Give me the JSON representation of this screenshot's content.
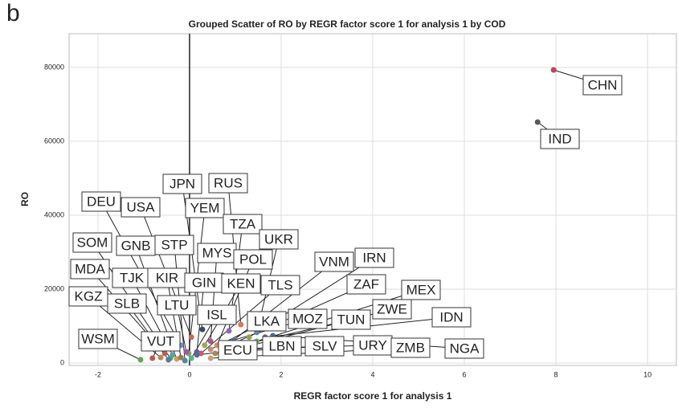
{
  "chart_data": {
    "type": "scatter",
    "panel_label": "b",
    "title": "Grouped Scatter of RO by REGR factor score   1 for analysis 1 by COD",
    "x_label": "REGR factor score   1 for analysis 1",
    "y_label": "RO",
    "xlim": [
      -2.63,
      10.63
    ],
    "ylim": [
      -650,
      89100
    ],
    "xticks": [
      -2,
      0,
      2,
      4,
      6,
      8,
      10
    ],
    "yticks": [
      0,
      20000,
      40000,
      60000,
      80000
    ],
    "reference_x": 0,
    "grid": true,
    "series": [
      {
        "name": "CHN",
        "color": "#b5475e",
        "x": [
          7.95
        ],
        "values": [
          79300
        ]
      },
      {
        "name": "IND",
        "color": "#5a5a5a",
        "x": [
          7.6
        ],
        "values": [
          65200
        ]
      },
      {
        "name": "DEU",
        "color": "#6a8fc0",
        "x": [
          -0.19
        ],
        "values": [
          4800
        ]
      },
      {
        "name": "USA",
        "color": "#c76a5a",
        "x": [
          0.04
        ],
        "values": [
          7000
        ]
      },
      {
        "name": "JPN",
        "color": "#3b4a6b",
        "x": [
          0.28
        ],
        "values": [
          9100
        ]
      },
      {
        "name": "RUS",
        "color": "#d07a5a",
        "x": [
          1.12
        ],
        "values": [
          10400
        ]
      },
      {
        "name": "YEM",
        "color": "#7aa35a",
        "x": [
          -0.02
        ],
        "values": [
          2600
        ]
      },
      {
        "name": "TZA",
        "color": "#8c6bb1",
        "x": [
          0.86
        ],
        "values": [
          8700
        ]
      },
      {
        "name": "UKR",
        "color": "#6c7fb5",
        "x": [
          1.47
        ],
        "values": [
          8300
        ]
      },
      {
        "name": "SOM",
        "color": "#5a9e6f",
        "x": [
          -0.42
        ],
        "values": [
          1300
        ]
      },
      {
        "name": "GNB",
        "color": "#c7a05a",
        "x": [
          -0.28
        ],
        "values": [
          1100
        ]
      },
      {
        "name": "STP",
        "color": "#4d8aa6",
        "x": [
          -0.1
        ],
        "values": [
          650
        ]
      },
      {
        "name": "MYS",
        "color": "#a35a8c",
        "x": [
          0.46
        ],
        "values": [
          5900
        ]
      },
      {
        "name": "POL",
        "color": "#d4896a",
        "x": [
          0.6
        ],
        "values": [
          4800
        ]
      },
      {
        "name": "VNM",
        "color": "#5a6fa3",
        "x": [
          0.95
        ],
        "values": [
          6100
        ]
      },
      {
        "name": "IRN",
        "color": "#8aa35a",
        "x": [
          1.3
        ],
        "values": [
          7000
        ]
      },
      {
        "name": "MDA",
        "color": "#b3625a",
        "x": [
          -0.54
        ],
        "values": [
          2600
        ]
      },
      {
        "name": "TJK",
        "color": "#5aa39a",
        "x": [
          -0.37
        ],
        "values": [
          2200
        ]
      },
      {
        "name": "KIR",
        "color": "#9a7a5a",
        "x": [
          -0.19
        ],
        "values": [
          1500
        ]
      },
      {
        "name": "GIN",
        "color": "#6a5aa3",
        "x": [
          0.16
        ],
        "values": [
          3000
        ]
      },
      {
        "name": "KEN",
        "color": "#a3a35a",
        "x": [
          0.33
        ],
        "values": [
          4800
        ]
      },
      {
        "name": "TLS",
        "color": "#c75a7a",
        "x": [
          0.25
        ],
        "values": [
          2600
        ]
      },
      {
        "name": "ZAF",
        "color": "#5a8ac7",
        "x": [
          0.77
        ],
        "values": [
          4300
        ]
      },
      {
        "name": "MEX",
        "color": "#7ab35a",
        "x": [
          1.47
        ],
        "values": [
          5900
        ]
      },
      {
        "name": "KGZ",
        "color": "#b38a5a",
        "x": [
          -0.63
        ],
        "values": [
          1500
        ]
      },
      {
        "name": "SLB",
        "color": "#5a7a9a",
        "x": [
          -0.46
        ],
        "values": [
          900
        ]
      },
      {
        "name": "LTU",
        "color": "#9a5aa3",
        "x": [
          -0.07
        ],
        "values": [
          3000
        ]
      },
      {
        "name": "ISL",
        "color": "#5ab38a",
        "x": [
          0.04
        ],
        "values": [
          1300
        ]
      },
      {
        "name": "LKA",
        "color": "#c78a7a",
        "x": [
          0.46
        ],
        "values": [
          3700
        ]
      },
      {
        "name": "MOZ",
        "color": "#7a8ac7",
        "x": [
          0.68
        ],
        "values": [
          5200
        ]
      },
      {
        "name": "TUN",
        "color": "#a36a5a",
        "x": [
          1.12
        ],
        "values": [
          4800
        ]
      },
      {
        "name": "ZWE",
        "color": "#5a9ab3",
        "x": [
          0.95
        ],
        "values": [
          3500
        ]
      },
      {
        "name": "IDN",
        "color": "#8a5a7a",
        "x": [
          1.65
        ],
        "values": [
          7000
        ]
      },
      {
        "name": "WSM",
        "color": "#6aa35a",
        "x": [
          -1.07
        ],
        "values": [
          900
        ]
      },
      {
        "name": "VUT",
        "color": "#b35a5a",
        "x": [
          -0.81
        ],
        "values": [
          1300
        ]
      },
      {
        "name": "ECU",
        "color": "#5a6a8a",
        "x": [
          0.16
        ],
        "values": [
          2200
        ]
      },
      {
        "name": "LBN",
        "color": "#a38a5a",
        "x": [
          0.56
        ],
        "values": [
          2600
        ]
      },
      {
        "name": "SLV",
        "color": "#7a5ab3",
        "x": [
          0.81
        ],
        "values": [
          3000
        ]
      },
      {
        "name": "URY",
        "color": "#5aa36a",
        "x": [
          1.09
        ],
        "values": [
          3900
        ]
      },
      {
        "name": "ZMB",
        "color": "#c7a07a",
        "x": [
          0.46
        ],
        "values": [
          1300
        ]
      },
      {
        "name": "NGA",
        "color": "#4a6a9a",
        "x": [
          1.82
        ],
        "values": [
          7400
        ]
      }
    ]
  }
}
